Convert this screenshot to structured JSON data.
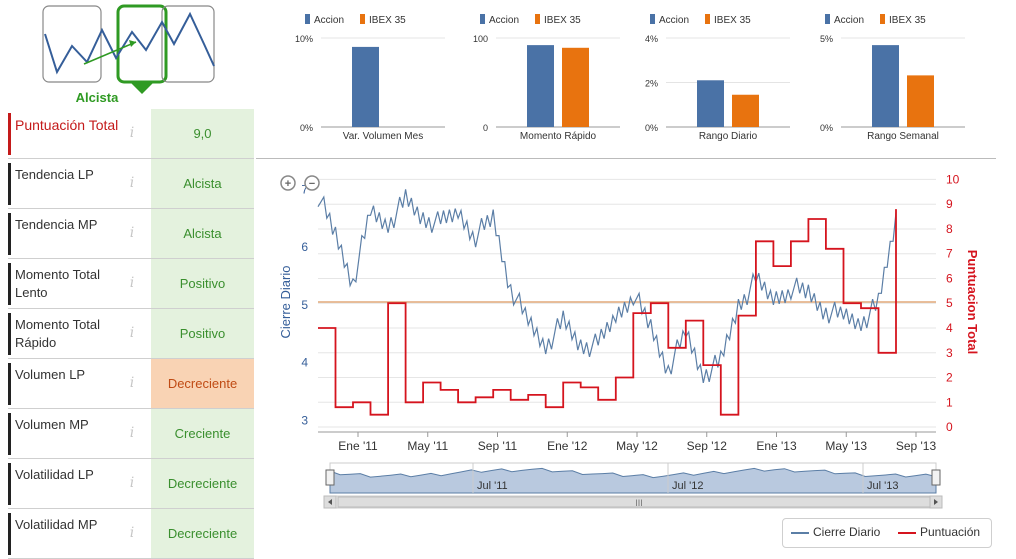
{
  "colors": {
    "accion": "#4a72a6",
    "ibex": "#e8730f",
    "score": "#d5141e",
    "close": "#5b7ea6",
    "green": "#3a8f2e",
    "orange_bg": "#f9d3b4"
  },
  "trend": {
    "label": "Alcista",
    "icon": "trend-arrow-icon"
  },
  "scores": [
    {
      "name": "Puntuación Total",
      "value": "9,0",
      "status": "good",
      "total": true
    },
    {
      "name": "Tendencia LP",
      "value": "Alcista",
      "status": "good"
    },
    {
      "name": "Tendencia MP",
      "value": "Alcista",
      "status": "good"
    },
    {
      "name": "Momento Total Lento",
      "value": "Positivo",
      "status": "good"
    },
    {
      "name": "Momento Total Rápido",
      "value": "Positivo",
      "status": "good"
    },
    {
      "name": "Volumen LP",
      "value": "Decreciente",
      "status": "bad"
    },
    {
      "name": "Volumen MP",
      "value": "Creciente",
      "status": "good"
    },
    {
      "name": "Volatilidad LP",
      "value": "Decreciente",
      "status": "good"
    },
    {
      "name": "Volatilidad MP",
      "value": "Decreciente",
      "status": "good"
    }
  ],
  "info_glyph": "i",
  "chart_data": [
    {
      "type": "bar",
      "legend": [
        "Accion",
        "IBEX 35"
      ],
      "categories": [
        "Var. Volumen Mes"
      ],
      "series": [
        {
          "name": "Accion",
          "values": [
            9
          ]
        },
        {
          "name": "IBEX 35",
          "values": [
            0
          ]
        }
      ],
      "ylim": [
        0,
        10
      ],
      "yticks": [
        "0%",
        "10%"
      ]
    },
    {
      "type": "bar",
      "legend": [
        "Accion",
        "IBEX 35"
      ],
      "categories": [
        "Momento Rápido"
      ],
      "series": [
        {
          "name": "Accion",
          "values": [
            92
          ]
        },
        {
          "name": "IBEX 35",
          "values": [
            89
          ]
        }
      ],
      "ylim": [
        0,
        100
      ],
      "yticks": [
        "0",
        "100"
      ]
    },
    {
      "type": "bar",
      "legend": [
        "Accion",
        "IBEX 35"
      ],
      "categories": [
        "Rango Diario"
      ],
      "series": [
        {
          "name": "Accion",
          "values": [
            2.1
          ]
        },
        {
          "name": "IBEX 35",
          "values": [
            1.45
          ]
        }
      ],
      "ylim": [
        0,
        4
      ],
      "yticks": [
        "0%",
        "2%",
        "4%"
      ]
    },
    {
      "type": "bar",
      "legend": [
        "Accion",
        "IBEX 35"
      ],
      "categories": [
        "Rango Semanal"
      ],
      "series": [
        {
          "name": "Accion",
          "values": [
            4.6
          ]
        },
        {
          "name": "IBEX 35",
          "values": [
            2.9
          ]
        }
      ],
      "ylim": [
        0,
        5
      ],
      "yticks": [
        "0%",
        "5%"
      ]
    },
    {
      "type": "line",
      "ylabel": "Cierre Diario",
      "y2label": "Puntuacion Total",
      "ylim": [
        2.8,
        7.3
      ],
      "yticks": [
        "3",
        "4",
        "5",
        "6",
        "7"
      ],
      "y2lim": [
        -0.2,
        10.3
      ],
      "y2ticks": [
        "0",
        "1",
        "2",
        "3",
        "4",
        "5",
        "6",
        "7",
        "8",
        "9",
        "10"
      ],
      "xticks": [
        "Ene '11",
        "May '11",
        "Sep '11",
        "Ene '12",
        "May '12",
        "Sep '12",
        "Ene '13",
        "May '13",
        "Sep '13"
      ],
      "x": [
        0,
        1,
        2,
        3,
        4,
        5,
        6,
        7,
        8,
        9,
        10,
        11,
        12,
        13,
        14,
        15,
        16,
        17,
        18,
        19,
        20,
        21,
        22,
        23,
        24,
        25,
        26,
        27,
        28,
        29,
        30,
        31,
        32,
        33
      ],
      "series": [
        {
          "name": "Cierre Diario",
          "values": [
            6.9,
            6.2,
            5.4,
            6.6,
            6.4,
            6.8,
            6.5,
            6.4,
            6.6,
            6.2,
            6.5,
            5.3,
            4.7,
            4.3,
            4.7,
            4.3,
            4.3,
            4.8,
            5.2,
            4.6,
            3.9,
            4.5,
            3.8,
            4.0,
            5.0,
            5.4,
            5.1,
            5.3,
            5.2,
            4.9,
            4.8,
            4.7,
            5.0,
            6.5
          ]
        },
        {
          "name": "Puntuación",
          "values": [
            4,
            0.8,
            1,
            0.5,
            5,
            1,
            1.8,
            1.5,
            1,
            1.2,
            1.5,
            1.1,
            1.3,
            0.8,
            1.8,
            1.6,
            1.1,
            2,
            4.6,
            5,
            3.2,
            4.3,
            2.5,
            0.5,
            4.5,
            7.5,
            6.5,
            7.5,
            8.4,
            7.2,
            5,
            4.8,
            3,
            8.8
          ]
        }
      ],
      "refline": {
        "axis": "y",
        "value": 5.05
      }
    }
  ],
  "navigator": {
    "labels": [
      "Jul '11",
      "Jul '12",
      "Jul '13"
    ],
    "handle": "III"
  },
  "legend": {
    "close": "Cierre Diario",
    "score": "Puntuación"
  }
}
